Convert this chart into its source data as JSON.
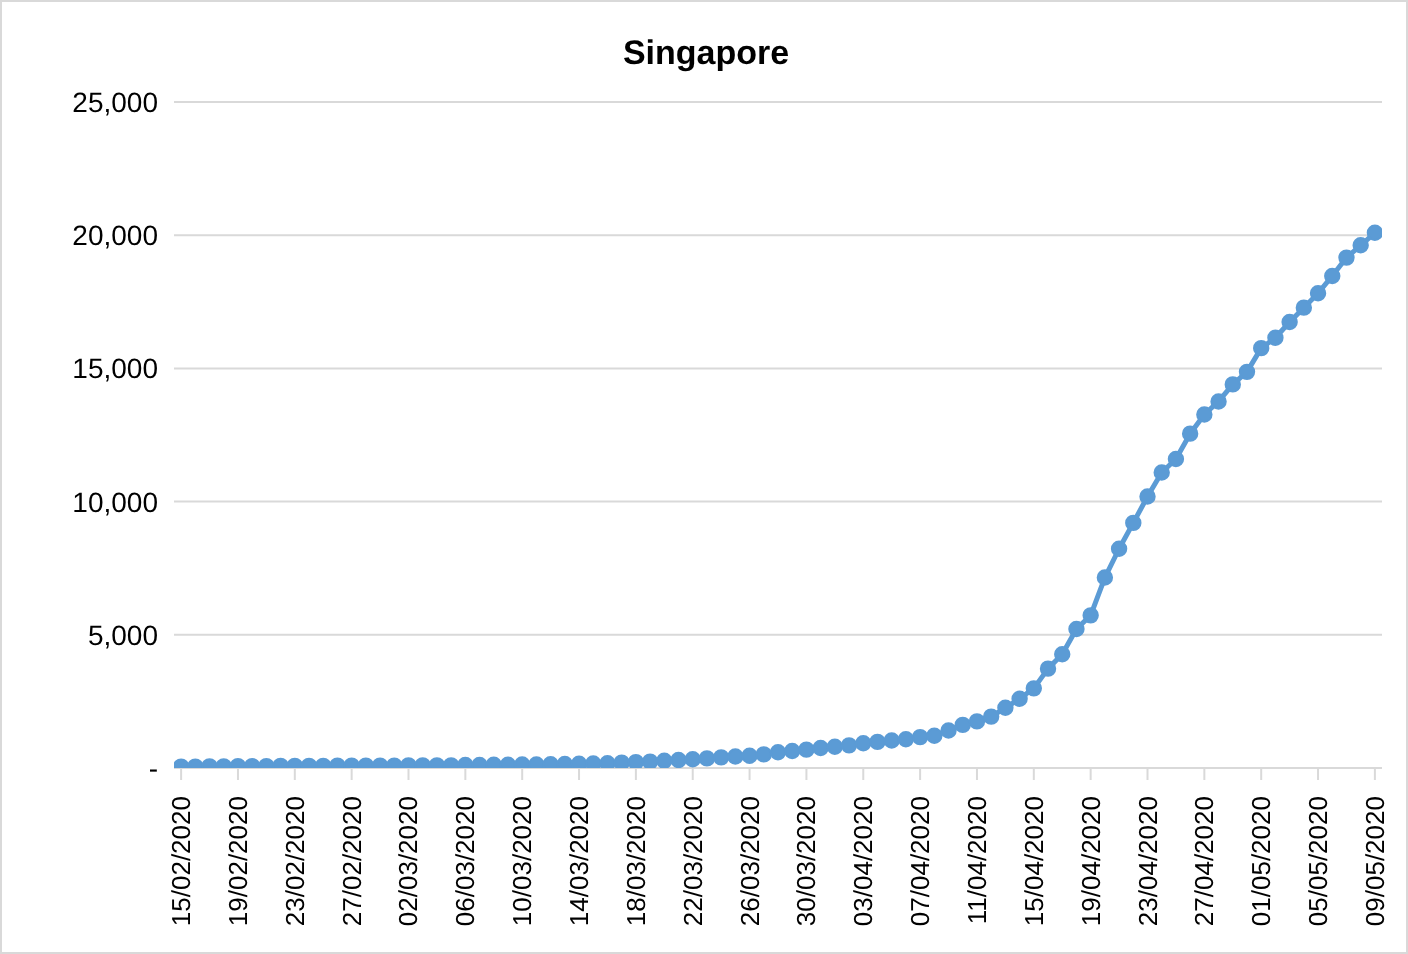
{
  "chart_data": {
    "type": "line",
    "title": "Singapore",
    "categories": [
      "15/02/2020",
      null,
      null,
      null,
      "19/02/2020",
      null,
      null,
      null,
      "23/02/2020",
      null,
      null,
      null,
      "27/02/2020",
      null,
      null,
      null,
      "02/03/2020",
      null,
      null,
      null,
      "06/03/2020",
      null,
      null,
      null,
      "10/03/2020",
      null,
      null,
      null,
      "14/03/2020",
      null,
      null,
      null,
      "18/03/2020",
      null,
      null,
      null,
      "22/03/2020",
      null,
      null,
      null,
      "26/03/2020",
      null,
      null,
      null,
      "30/03/2020",
      null,
      null,
      null,
      "03/04/2020",
      null,
      null,
      null,
      "07/04/2020",
      null,
      null,
      null,
      "11/04/2020",
      null,
      null,
      null,
      "15/04/2020",
      null,
      null,
      null,
      "19/04/2020",
      null,
      null,
      null,
      "23/04/2020",
      null,
      null,
      null,
      "27/04/2020",
      null,
      null,
      null,
      "01/05/2020",
      null,
      null,
      null,
      "05/05/2020",
      null,
      null,
      null,
      "09/05/2020"
    ],
    "series": [
      {
        "color": "#5b9bd5",
        "values": [
          50,
          50,
          60,
          60,
          70,
          70,
          70,
          80,
          80,
          80,
          80,
          90,
          90,
          90,
          90,
          90,
          100,
          100,
          100,
          100,
          110,
          110,
          120,
          120,
          130,
          130,
          140,
          150,
          160,
          170,
          180,
          200,
          220,
          240,
          270,
          300,
          330,
          360,
          400,
          430,
          460,
          510,
          590,
          640,
          690,
          750,
          800,
          850,
          930,
          980,
          1030,
          1080,
          1160,
          1210,
          1410,
          1620,
          1750,
          1930,
          2260,
          2600,
          2990,
          3730,
          4270,
          5220,
          5730,
          7150,
          8230,
          9200,
          10190,
          11090,
          11600,
          12550,
          13270,
          13760,
          14400,
          14870,
          15760,
          16150,
          16740,
          17280,
          17820,
          18470,
          19160,
          19620,
          20090
        ]
      }
    ],
    "ylim": [
      0,
      25000
    ],
    "yticks": [
      {
        "value": 0,
        "label": "-"
      },
      {
        "value": 5000,
        "label": "5,000"
      },
      {
        "value": 10000,
        "label": "10,000"
      },
      {
        "value": 15000,
        "label": "15,000"
      },
      {
        "value": 20000,
        "label": "20,000"
      },
      {
        "value": 25000,
        "label": "25,000"
      }
    ],
    "grid": "y",
    "legend": false,
    "marker": "circle",
    "line_style": "solid"
  }
}
